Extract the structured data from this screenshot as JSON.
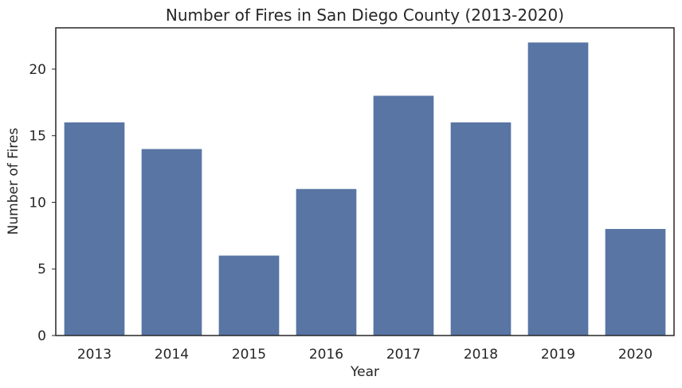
{
  "chart_data": {
    "type": "bar",
    "title": "Number of Fires in San Diego County (2013-2020)",
    "xlabel": "Year",
    "ylabel": "Number of Fires",
    "categories": [
      "2013",
      "2014",
      "2015",
      "2016",
      "2017",
      "2018",
      "2019",
      "2020"
    ],
    "values": [
      16,
      14,
      6,
      11,
      18,
      16,
      22,
      8
    ],
    "ylim": [
      0,
      23.1
    ],
    "yticks": [
      "0",
      "5",
      "10",
      "15",
      "20"
    ],
    "grid": false,
    "bar_color": "#5875a4",
    "axis_color": "#262626"
  }
}
